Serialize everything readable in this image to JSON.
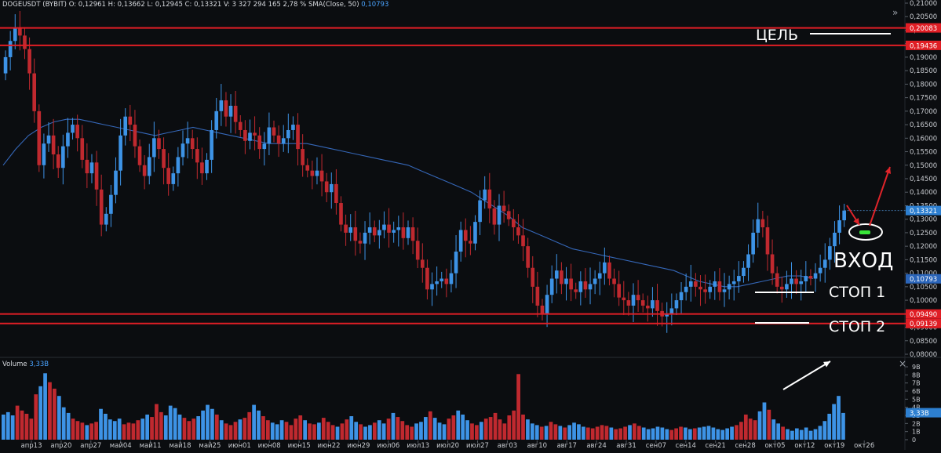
{
  "header": {
    "symbol": "DOGEUSDT (BYBIT)",
    "ohlc": "O: 0,12961  H: 0,13662  L: 0,12945  C: 0,13321  V: 3 327 294 165  2,78 %",
    "sma_label": "SMA(Close, 50)",
    "sma_value": "0,10793"
  },
  "volume_header": {
    "label": "Volume",
    "value": "3,33B"
  },
  "controls": {
    "collapse_glyph": "»",
    "close_glyph": "×"
  },
  "colors": {
    "background": "#0b0d10",
    "up": "#3d93e6",
    "down": "#c0292f",
    "sma": "#3567b8",
    "level_line": "#e01e25",
    "annotation": "#ffffff",
    "arrow": "#e0242a",
    "entry_marker": "#39e639"
  },
  "annotations": {
    "target": "ЦЕЛЬ",
    "entry": "ВХОД",
    "stop1": "СТОП 1",
    "stop2": "СТОП 2"
  },
  "chart_data": [
    {
      "type": "candlestick",
      "title": "DOGEUSDT (BYBIT)",
      "ylim": [
        0.08,
        0.21
      ],
      "y_ticks": [
        "0,21000",
        "0,20500",
        "0,20000",
        "0,19500",
        "0,19000",
        "0,18500",
        "0,18000",
        "0,17500",
        "0,17000",
        "0,16500",
        "0,16000",
        "0,15500",
        "0,15000",
        "0,14500",
        "0,14000",
        "0,13500",
        "0,13000",
        "0,12500",
        "0,12000",
        "0,11500",
        "0,11000",
        "0,10500",
        "0,10000",
        "0,09500",
        "0,09000",
        "0,08500",
        "0,08000"
      ],
      "x_ticks": [
        "апр13",
        "апр20",
        "апр27",
        "май04",
        "май11",
        "май18",
        "май25",
        "июн01",
        "июн08",
        "июн15",
        "июн22",
        "июн29",
        "июл06",
        "июл13",
        "июл20",
        "июл27",
        "авг03",
        "авг10",
        "авг17",
        "авг24",
        "авг31",
        "сен07",
        "сен14",
        "сен21",
        "сен28",
        "окт05",
        "окт12",
        "окт19",
        "окт26"
      ],
      "horizontal_levels": [
        {
          "value": 0.20083,
          "label": "0,20083"
        },
        {
          "value": 0.19436,
          "label": "0,19436"
        },
        {
          "value": 0.0949,
          "label": "0,09490"
        },
        {
          "value": 0.09139,
          "label": "0,09139"
        }
      ],
      "price_tags": [
        {
          "value": 0.13321,
          "label": "0,13321",
          "kind": "last"
        },
        {
          "value": 0.10793,
          "label": "0,10793",
          "kind": "sma"
        }
      ],
      "close": [
        0.19,
        0.196,
        0.201,
        0.198,
        0.193,
        0.184,
        0.17,
        0.15,
        0.158,
        0.161,
        0.154,
        0.149,
        0.157,
        0.162,
        0.165,
        0.16,
        0.152,
        0.147,
        0.151,
        0.141,
        0.128,
        0.132,
        0.139,
        0.148,
        0.161,
        0.168,
        0.165,
        0.157,
        0.15,
        0.146,
        0.153,
        0.16,
        0.156,
        0.149,
        0.143,
        0.147,
        0.153,
        0.158,
        0.16,
        0.156,
        0.151,
        0.147,
        0.152,
        0.163,
        0.17,
        0.174,
        0.168,
        0.172,
        0.166,
        0.163,
        0.159,
        0.162,
        0.161,
        0.156,
        0.158,
        0.164,
        0.161,
        0.158,
        0.16,
        0.163,
        0.165,
        0.156,
        0.15,
        0.148,
        0.146,
        0.148,
        0.144,
        0.14,
        0.143,
        0.136,
        0.128,
        0.125,
        0.127,
        0.122,
        0.121,
        0.125,
        0.127,
        0.124,
        0.126,
        0.128,
        0.125,
        0.126,
        0.127,
        0.123,
        0.127,
        0.122,
        0.115,
        0.112,
        0.104,
        0.106,
        0.107,
        0.108,
        0.106,
        0.11,
        0.118,
        0.126,
        0.122,
        0.121,
        0.129,
        0.137,
        0.141,
        0.134,
        0.128,
        0.135,
        0.133,
        0.13,
        0.127,
        0.124,
        0.12,
        0.112,
        0.105,
        0.098,
        0.095,
        0.102,
        0.108,
        0.111,
        0.106,
        0.108,
        0.104,
        0.103,
        0.107,
        0.104,
        0.106,
        0.108,
        0.11,
        0.114,
        0.108,
        0.106,
        0.101,
        0.1,
        0.098,
        0.102,
        0.1,
        0.098,
        0.097,
        0.1,
        0.096,
        0.094,
        0.095,
        0.097,
        0.1,
        0.103,
        0.105,
        0.107,
        0.105,
        0.104,
        0.103,
        0.105,
        0.107,
        0.103,
        0.104,
        0.106,
        0.107,
        0.109,
        0.112,
        0.117,
        0.125,
        0.13,
        0.127,
        0.117,
        0.11,
        0.105,
        0.104,
        0.106,
        0.108,
        0.106,
        0.107,
        0.109,
        0.108,
        0.11,
        0.112,
        0.115,
        0.12,
        0.125,
        0.1296,
        0.1332
      ],
      "sma": [
        0.15,
        0.156,
        0.161,
        0.164,
        0.166,
        0.167,
        0.167,
        0.166,
        0.165,
        0.164,
        0.163,
        0.162,
        0.161,
        0.162,
        0.163,
        0.164,
        0.163,
        0.162,
        0.161,
        0.16,
        0.159,
        0.158,
        0.158,
        0.158,
        0.158,
        0.157,
        0.156,
        0.155,
        0.154,
        0.153,
        0.152,
        0.151,
        0.15,
        0.148,
        0.146,
        0.144,
        0.142,
        0.14,
        0.137,
        0.134,
        0.131,
        0.127,
        0.125,
        0.123,
        0.121,
        0.119,
        0.118,
        0.117,
        0.116,
        0.115,
        0.114,
        0.113,
        0.112,
        0.111,
        0.109,
        0.107,
        0.106,
        0.105,
        0.105,
        0.106,
        0.107,
        0.108,
        0.109,
        0.109,
        0.108
      ],
      "series": [
        {
          "name": "SMA(Close, 50)",
          "last": 0.10793
        }
      ]
    },
    {
      "type": "bar",
      "title": "Volume",
      "ylim": [
        0,
        9
      ],
      "y_ticks": [
        "9B",
        "8B",
        "7B",
        "6B",
        "5B",
        "4B",
        "3B",
        "2B",
        "1B",
        "0"
      ],
      "value_tag": "3,33B",
      "values": [
        3.1,
        3.4,
        3.0,
        4.2,
        3.6,
        3.2,
        2.6,
        5.6,
        6.6,
        8.2,
        7.1,
        6.3,
        5.4,
        4.0,
        3.3,
        2.6,
        2.3,
        2.1,
        1.8,
        2.0,
        2.2,
        3.8,
        3.2,
        2.5,
        2.3,
        2.6,
        1.9,
        2.1,
        2.0,
        2.4,
        2.6,
        3.1,
        2.8,
        4.4,
        3.4,
        3.0,
        4.2,
        3.9,
        3.1,
        2.7,
        2.3,
        2.6,
        2.9,
        3.6,
        4.3,
        3.8,
        3.1,
        2.4,
        2.0,
        1.8,
        2.2,
        2.5,
        2.7,
        3.4,
        4.3,
        3.6,
        2.9,
        2.4,
        2.1,
        1.9,
        2.4,
        2.2,
        1.8,
        2.6,
        3.0,
        2.4,
        2.0,
        1.9,
        2.1,
        2.7,
        2.2,
        1.8,
        1.6,
        2.0,
        2.5,
        2.9,
        2.2,
        1.9,
        1.6,
        1.8,
        2.1,
        2.4,
        2.0,
        2.6,
        3.3,
        2.8,
        2.3,
        1.8,
        1.6,
        2.0,
        2.2,
        2.8,
        3.5,
        2.7,
        2.1,
        1.9,
        2.6,
        3.0,
        3.6,
        3.1,
        2.4,
        2.0,
        1.8,
        2.2,
        2.6,
        2.8,
        3.3,
        2.5,
        2.0,
        3.0,
        3.6,
        8.1,
        3.1,
        2.5,
        2.0,
        1.8,
        1.6,
        1.7,
        2.2,
        1.9,
        1.7,
        1.5,
        1.8,
        2.1,
        1.9,
        1.6,
        1.5,
        1.4,
        1.6,
        1.8,
        1.7,
        1.5,
        1.3,
        1.4,
        1.6,
        1.8,
        2.0,
        1.7,
        1.5,
        1.3,
        1.4,
        1.6,
        1.5,
        1.3,
        1.2,
        1.4,
        1.6,
        1.5,
        1.3,
        1.4,
        1.5,
        1.6,
        1.7,
        1.5,
        1.3,
        1.2,
        1.4,
        1.6,
        1.8,
        2.2,
        3.1,
        2.6,
        2.4,
        3.5,
        4.6,
        3.7,
        2.5,
        2.0,
        1.6,
        1.3,
        1.1,
        1.4,
        1.2,
        1.5,
        1.1,
        1.3,
        1.7,
        2.3,
        3.2,
        4.4,
        5.4,
        3.3
      ]
    }
  ]
}
